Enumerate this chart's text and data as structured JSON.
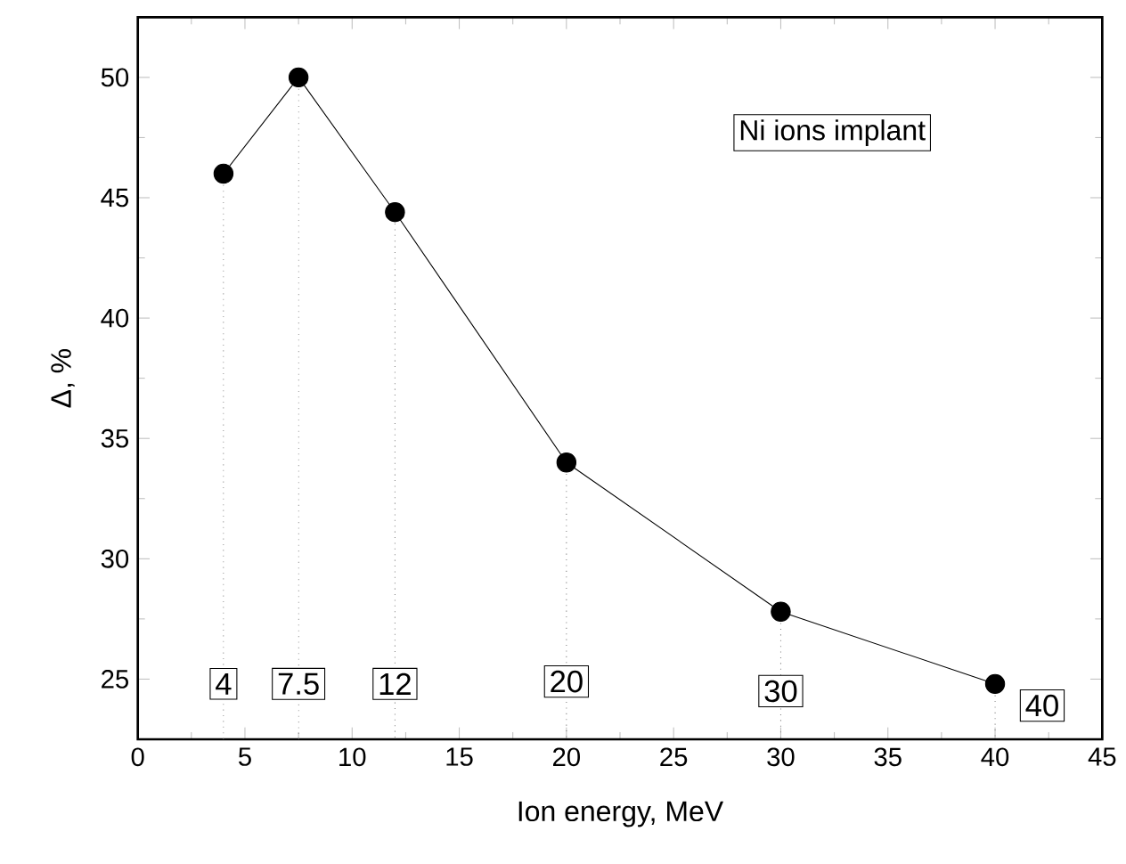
{
  "chart_data": {
    "type": "line",
    "xlabel": "Ion energy, MeV",
    "ylabel": "Δ, %",
    "x": [
      4,
      7.5,
      12,
      20,
      30,
      40
    ],
    "series": [
      {
        "color": "#000000",
        "values": [
          46,
          50,
          44.4,
          34,
          27.8,
          24.8
        ],
        "errors": [
          [
            22.5,
            46
          ],
          [
            22.5,
            50
          ],
          [
            22.5,
            44.4
          ],
          [
            22.5,
            34
          ],
          [
            22.5,
            27.8
          ],
          [
            22.5,
            24.8
          ]
        ]
      }
    ],
    "marker": "circle",
    "line_style": "solid",
    "grid": false,
    "xlim": [
      0,
      45
    ],
    "xticks": [
      0,
      5,
      10,
      15,
      20,
      25,
      30,
      35,
      40,
      45
    ],
    "ylim": [
      22.5,
      52.5
    ],
    "yticks": [
      25,
      30,
      35,
      40,
      45,
      50
    ],
    "annotations": [
      "Ni ions implant",
      {
        "text": "4",
        "x": 4,
        "y": 24.8
      },
      {
        "text": "7.5",
        "x": 7.5,
        "y": 24.8
      },
      {
        "text": "12",
        "x": 12,
        "y": 24.8
      },
      {
        "text": "20",
        "x": 20,
        "y": 24.9
      },
      {
        "text": "30",
        "x": 30,
        "y": 24.5
      },
      {
        "text": "40",
        "x": 42.2,
        "y": 23.9
      }
    ]
  }
}
